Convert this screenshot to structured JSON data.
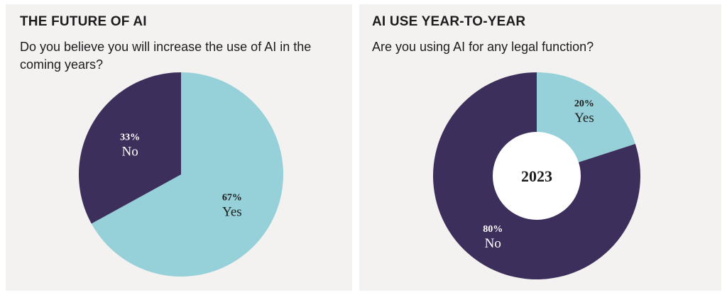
{
  "colors": {
    "dark": "#3d2f5b",
    "light": "#96d0d8",
    "panel": "#f4f2f1",
    "text_on_dark": "#ffffff",
    "text_on_light": "#1d1d1d",
    "hole": "#ffffff"
  },
  "left_panel": {
    "title": "THE FUTURE OF AI",
    "question": "Do you believe you will increase the use of AI in the coming years?"
  },
  "right_panel": {
    "title": "AI USE YEAR-TO-YEAR",
    "question": "Are you using AI for any legal function?"
  },
  "chart_data": [
    {
      "type": "pie",
      "title": "THE FUTURE OF AI",
      "slices": [
        {
          "label": "Yes",
          "value": 67,
          "value_label": "67%",
          "color": "#96d0d8"
        },
        {
          "label": "No",
          "value": 33,
          "value_label": "33%",
          "color": "#3d2f5b"
        }
      ]
    },
    {
      "type": "pie",
      "title": "AI USE YEAR-TO-YEAR",
      "center_label": "2023",
      "slices": [
        {
          "label": "Yes",
          "value": 20,
          "value_label": "20%",
          "color": "#96d0d8"
        },
        {
          "label": "No",
          "value": 80,
          "value_label": "80%",
          "color": "#3d2f5b"
        }
      ]
    }
  ]
}
